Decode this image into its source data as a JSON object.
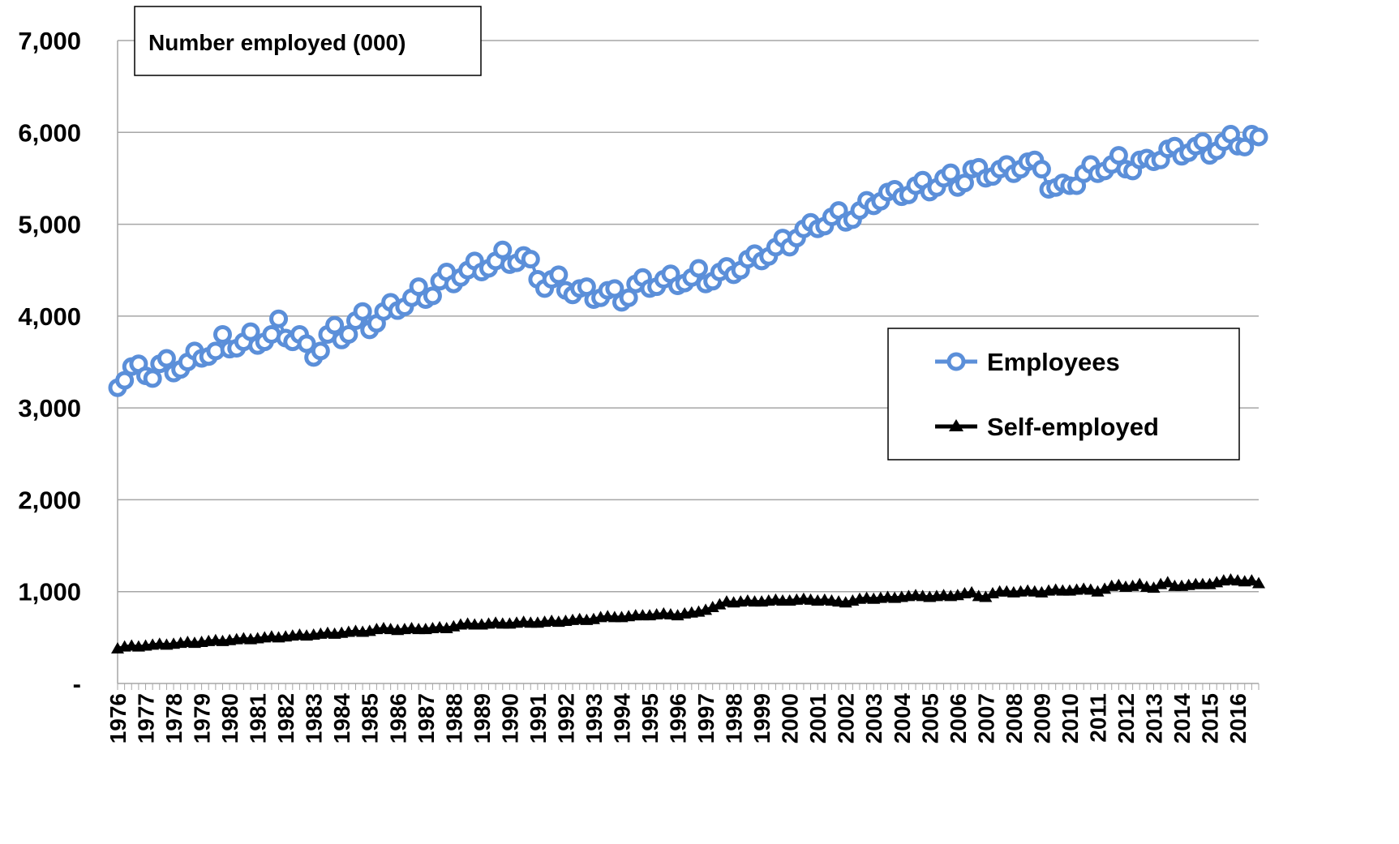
{
  "chart_data": {
    "type": "line",
    "annotation": "Number  employed (000)",
    "categories": [
      "1976",
      null,
      null,
      null,
      "1977",
      null,
      null,
      null,
      "1978",
      null,
      null,
      null,
      "1979",
      null,
      null,
      null,
      "1980",
      null,
      null,
      null,
      "1981",
      null,
      null,
      null,
      "1982",
      null,
      null,
      null,
      "1983",
      null,
      null,
      null,
      "1984",
      null,
      null,
      null,
      "1985",
      null,
      null,
      null,
      "1986",
      null,
      null,
      null,
      "1987",
      null,
      null,
      null,
      "1988",
      null,
      null,
      null,
      "1989",
      null,
      null,
      null,
      "1990",
      null,
      null,
      null,
      "1991",
      null,
      null,
      null,
      "1992",
      null,
      null,
      null,
      "1993",
      null,
      null,
      null,
      "1994",
      null,
      null,
      null,
      "1995",
      null,
      null,
      null,
      "1996",
      null,
      null,
      null,
      "1997",
      null,
      null,
      null,
      "1998",
      null,
      null,
      null,
      "1999",
      null,
      null,
      null,
      "2000",
      null,
      null,
      null,
      "2001",
      null,
      null,
      null,
      "2002",
      null,
      null,
      null,
      "2003",
      null,
      null,
      null,
      "2004",
      null,
      null,
      null,
      "2005",
      null,
      null,
      null,
      "2006",
      null,
      null,
      null,
      "2007",
      null,
      null,
      null,
      "2008",
      null,
      null,
      null,
      "2009",
      null,
      null,
      null,
      "2010",
      null,
      null,
      null,
      "2011",
      null,
      null,
      null,
      "2012",
      null,
      null,
      null,
      "2013",
      null,
      null,
      null,
      "2014",
      null,
      null,
      null,
      "2015",
      null,
      null,
      null,
      "2016",
      null,
      null,
      null
    ],
    "series": [
      {
        "name": "Employees",
        "color": "#5b8fd9",
        "marker": "circle",
        "values": [
          3220,
          3300,
          3450,
          3480,
          3350,
          3320,
          3480,
          3540,
          3380,
          3420,
          3500,
          3620,
          3540,
          3560,
          3620,
          3800,
          3640,
          3650,
          3720,
          3830,
          3680,
          3720,
          3800,
          3970,
          3760,
          3720,
          3800,
          3700,
          3550,
          3620,
          3800,
          3900,
          3740,
          3800,
          3950,
          4050,
          3850,
          3920,
          4050,
          4150,
          4060,
          4100,
          4200,
          4320,
          4180,
          4220,
          4380,
          4480,
          4350,
          4420,
          4500,
          4600,
          4480,
          4520,
          4600,
          4720,
          4560,
          4580,
          4660,
          4620,
          4400,
          4300,
          4400,
          4450,
          4280,
          4230,
          4300,
          4320,
          4180,
          4200,
          4280,
          4300,
          4150,
          4200,
          4350,
          4420,
          4300,
          4320,
          4400,
          4460,
          4330,
          4360,
          4420,
          4520,
          4350,
          4380,
          4480,
          4540,
          4450,
          4500,
          4620,
          4680,
          4600,
          4650,
          4750,
          4850,
          4750,
          4850,
          4950,
          5020,
          4950,
          4980,
          5080,
          5150,
          5020,
          5050,
          5150,
          5260,
          5200,
          5250,
          5350,
          5380,
          5300,
          5320,
          5420,
          5480,
          5350,
          5400,
          5500,
          5560,
          5400,
          5450,
          5600,
          5620,
          5500,
          5520,
          5600,
          5650,
          5550,
          5600,
          5680,
          5700,
          5600,
          5380,
          5400,
          5450,
          5420,
          5420,
          5550,
          5650,
          5550,
          5580,
          5650,
          5750,
          5600,
          5580,
          5700,
          5720,
          5680,
          5700,
          5820,
          5850,
          5740,
          5780,
          5850,
          5900,
          5750,
          5800,
          5900,
          5980,
          5850,
          5840,
          5980,
          5950
        ]
      },
      {
        "name": "Self-employed",
        "color": "#000000",
        "marker": "triangle",
        "values": [
          380,
          400,
          410,
          400,
          410,
          420,
          430,
          420,
          430,
          440,
          450,
          440,
          450,
          460,
          470,
          460,
          470,
          480,
          490,
          480,
          490,
          500,
          510,
          500,
          510,
          520,
          530,
          520,
          530,
          540,
          550,
          540,
          550,
          560,
          570,
          560,
          570,
          590,
          600,
          590,
          580,
          590,
          600,
          590,
          590,
          600,
          610,
          600,
          620,
          640,
          650,
          640,
          640,
          650,
          660,
          650,
          650,
          660,
          670,
          660,
          660,
          670,
          680,
          670,
          680,
          690,
          700,
          690,
          700,
          720,
          730,
          720,
          720,
          730,
          740,
          740,
          740,
          750,
          760,
          750,
          740,
          760,
          770,
          780,
          800,
          830,
          860,
          890,
          880,
          890,
          900,
          890,
          890,
          900,
          910,
          900,
          900,
          910,
          920,
          910,
          900,
          910,
          900,
          890,
          880,
          900,
          920,
          930,
          920,
          930,
          940,
          930,
          940,
          950,
          960,
          950,
          940,
          950,
          960,
          950,
          960,
          980,
          990,
          950,
          940,
          980,
          1000,
          1000,
          990,
          1000,
          1010,
          1000,
          990,
          1010,
          1020,
          1010,
          1010,
          1020,
          1030,
          1020,
          1000,
          1030,
          1060,
          1070,
          1050,
          1060,
          1080,
          1050,
          1040,
          1080,
          1100,
          1060,
          1060,
          1070,
          1080,
          1080,
          1080,
          1100,
          1120,
          1130,
          1120,
          1110,
          1120,
          1090
        ]
      }
    ],
    "ylim": [
      0,
      7000
    ],
    "yticks": [
      {
        "value": 0,
        "label": "-"
      },
      {
        "value": 1000,
        "label": "1,000"
      },
      {
        "value": 2000,
        "label": "2,000"
      },
      {
        "value": 3000,
        "label": "3,000"
      },
      {
        "value": 4000,
        "label": "4,000"
      },
      {
        "value": 5000,
        "label": "5,000"
      },
      {
        "value": 6000,
        "label": "6,000"
      },
      {
        "value": 7000,
        "label": "7,000"
      }
    ],
    "grid": true,
    "legend": "right"
  }
}
